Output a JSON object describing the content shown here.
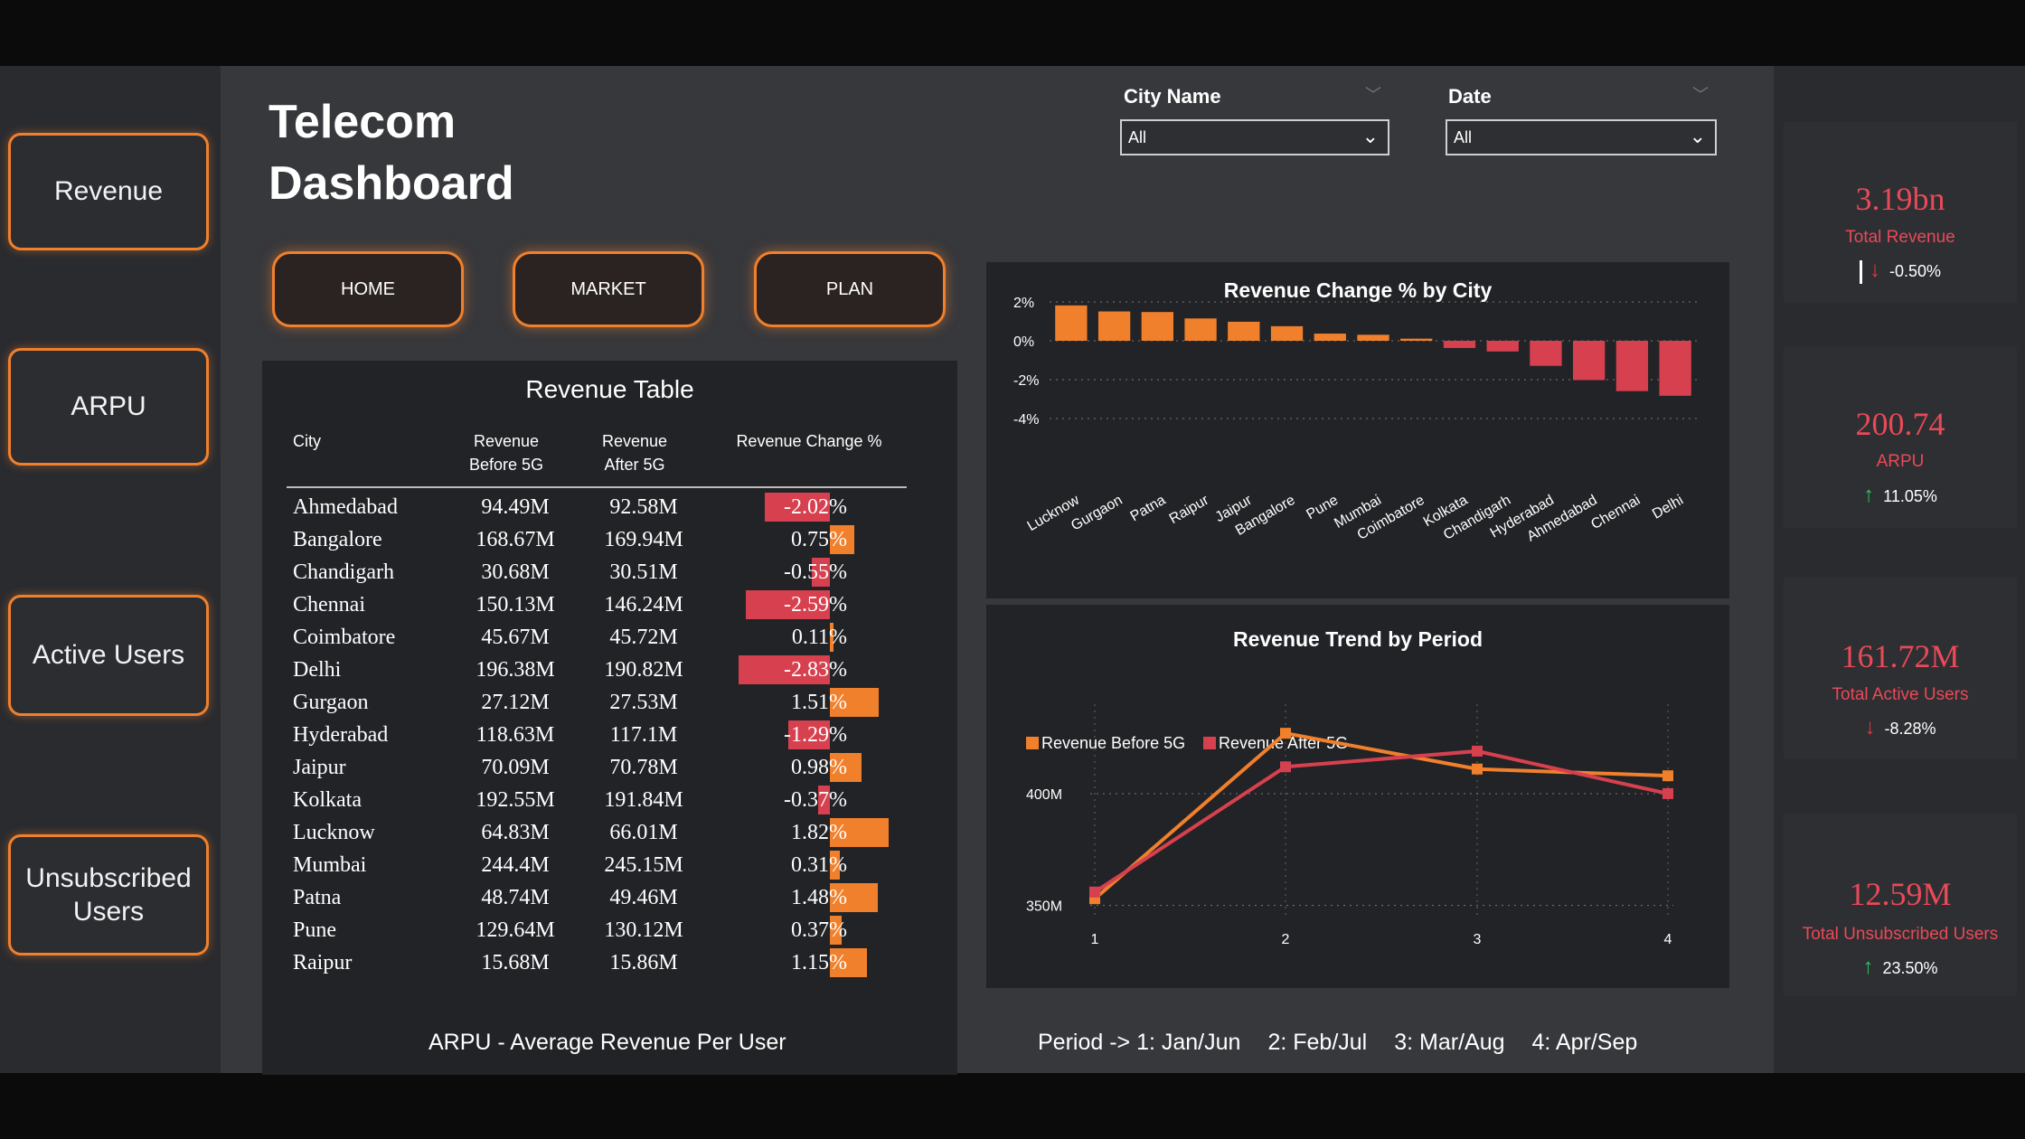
{
  "dashboard": {
    "title_line1": "Telecom",
    "title_line2": "Dashboard"
  },
  "sidebar": {
    "items": [
      {
        "label": "Revenue"
      },
      {
        "label": "ARPU"
      },
      {
        "label": "Active Users"
      },
      {
        "label_line1": "Unsubscribed",
        "label_line2": "Users"
      }
    ]
  },
  "nav": {
    "home": "HOME",
    "market": "MARKET",
    "plan": "PLAN"
  },
  "filters": {
    "city": {
      "label": "City Name",
      "value": "All"
    },
    "date": {
      "label": "Date",
      "value": "All"
    }
  },
  "revenue_table": {
    "title": "Revenue Table",
    "headers": {
      "city": "City",
      "before_line1": "Revenue",
      "before_line2": "Before 5G",
      "after_line1": "Revenue",
      "after_line2": "After 5G",
      "change": "Revenue Change %"
    },
    "rows": [
      {
        "city": "Ahmedabad",
        "before": "94.49M",
        "after": "92.58M",
        "change": "-2.02%",
        "change_value": -2.02
      },
      {
        "city": "Bangalore",
        "before": "168.67M",
        "after": "169.94M",
        "change": "0.75%",
        "change_value": 0.75
      },
      {
        "city": "Chandigarh",
        "before": "30.68M",
        "after": "30.51M",
        "change": "-0.55%",
        "change_value": -0.55
      },
      {
        "city": "Chennai",
        "before": "150.13M",
        "after": "146.24M",
        "change": "-2.59%",
        "change_value": -2.59
      },
      {
        "city": "Coimbatore",
        "before": "45.67M",
        "after": "45.72M",
        "change": "0.11%",
        "change_value": 0.11
      },
      {
        "city": "Delhi",
        "before": "196.38M",
        "after": "190.82M",
        "change": "-2.83%",
        "change_value": -2.83
      },
      {
        "city": "Gurgaon",
        "before": "27.12M",
        "after": "27.53M",
        "change": "1.51%",
        "change_value": 1.51
      },
      {
        "city": "Hyderabad",
        "before": "118.63M",
        "after": "117.1M",
        "change": "-1.29%",
        "change_value": -1.29
      },
      {
        "city": "Jaipur",
        "before": "70.09M",
        "after": "70.78M",
        "change": "0.98%",
        "change_value": 0.98
      },
      {
        "city": "Kolkata",
        "before": "192.55M",
        "after": "191.84M",
        "change": "-0.37%",
        "change_value": -0.37
      },
      {
        "city": "Lucknow",
        "before": "64.83M",
        "after": "66.01M",
        "change": "1.82%",
        "change_value": 1.82
      },
      {
        "city": "Mumbai",
        "before": "244.4M",
        "after": "245.15M",
        "change": "0.31%",
        "change_value": 0.31
      },
      {
        "city": "Patna",
        "before": "48.74M",
        "after": "49.46M",
        "change": "1.48%",
        "change_value": 1.48
      },
      {
        "city": "Pune",
        "before": "129.64M",
        "after": "130.12M",
        "change": "0.37%",
        "change_value": 0.37
      },
      {
        "city": "Raipur",
        "before": "15.68M",
        "after": "15.86M",
        "change": "1.15%",
        "change_value": 1.15
      }
    ]
  },
  "kpis": [
    {
      "value": "3.19bn",
      "label": "Total Revenue",
      "change": "-0.50%",
      "direction": "down"
    },
    {
      "value": "200.74",
      "label": "ARPU",
      "change": "11.05%",
      "direction": "up"
    },
    {
      "value": "161.72M",
      "label": "Total Active Users",
      "change": "-8.28%",
      "direction": "down"
    },
    {
      "value": "12.59M",
      "label": "Total Unsubscribed Users",
      "change": "23.50%",
      "direction": "up"
    }
  ],
  "colors": {
    "positive": "#f0802c",
    "negative": "#d7404f",
    "kpi": "#e84a57",
    "up_arrow": "#2fbf5b",
    "down_arrow": "#e8343d"
  },
  "footnotes": {
    "arpu": "ARPU - Average Revenue Per User",
    "period_prefix": "Period -> 1: Jan/Jun",
    "p2": "2: Feb/Jul",
    "p3": "3: Mar/Aug",
    "p4": "4: Apr/Sep"
  },
  "chart_data": [
    {
      "type": "bar",
      "title": "Revenue Change % by City",
      "categories": [
        "Lucknow",
        "Gurgaon",
        "Patna",
        "Raipur",
        "Jaipur",
        "Bangalore",
        "Pune",
        "Mumbai",
        "Coimbatore",
        "Kolkata",
        "Chandigarh",
        "Hyderabad",
        "Ahmedabad",
        "Chennai",
        "Delhi"
      ],
      "values": [
        1.82,
        1.51,
        1.48,
        1.15,
        0.98,
        0.75,
        0.37,
        0.31,
        0.11,
        -0.37,
        -0.55,
        -1.29,
        -2.02,
        -2.59,
        -2.83
      ],
      "ylim": [
        -4,
        2
      ],
      "yticks": [
        2,
        0,
        -2,
        -4
      ],
      "ytick_labels": [
        "2%",
        "0%",
        "-2%",
        "-4%"
      ],
      "grid": true
    },
    {
      "type": "line",
      "title": "Revenue Trend by Period",
      "x": [
        1,
        2,
        3,
        4
      ],
      "xtick_labels": [
        "1",
        "2",
        "3",
        "4"
      ],
      "series": [
        {
          "name": "Revenue Before 5G",
          "values": [
            353,
            427,
            411,
            408
          ],
          "color": "#f0802c"
        },
        {
          "name": "Revenue After 5G",
          "values": [
            356,
            412,
            419,
            400
          ],
          "color": "#d7404f"
        }
      ],
      "yticks": [
        350,
        400
      ],
      "ytick_labels": [
        "350M",
        "400M"
      ],
      "ylim": [
        345,
        440
      ],
      "grid": true,
      "legend": "top-left"
    }
  ]
}
